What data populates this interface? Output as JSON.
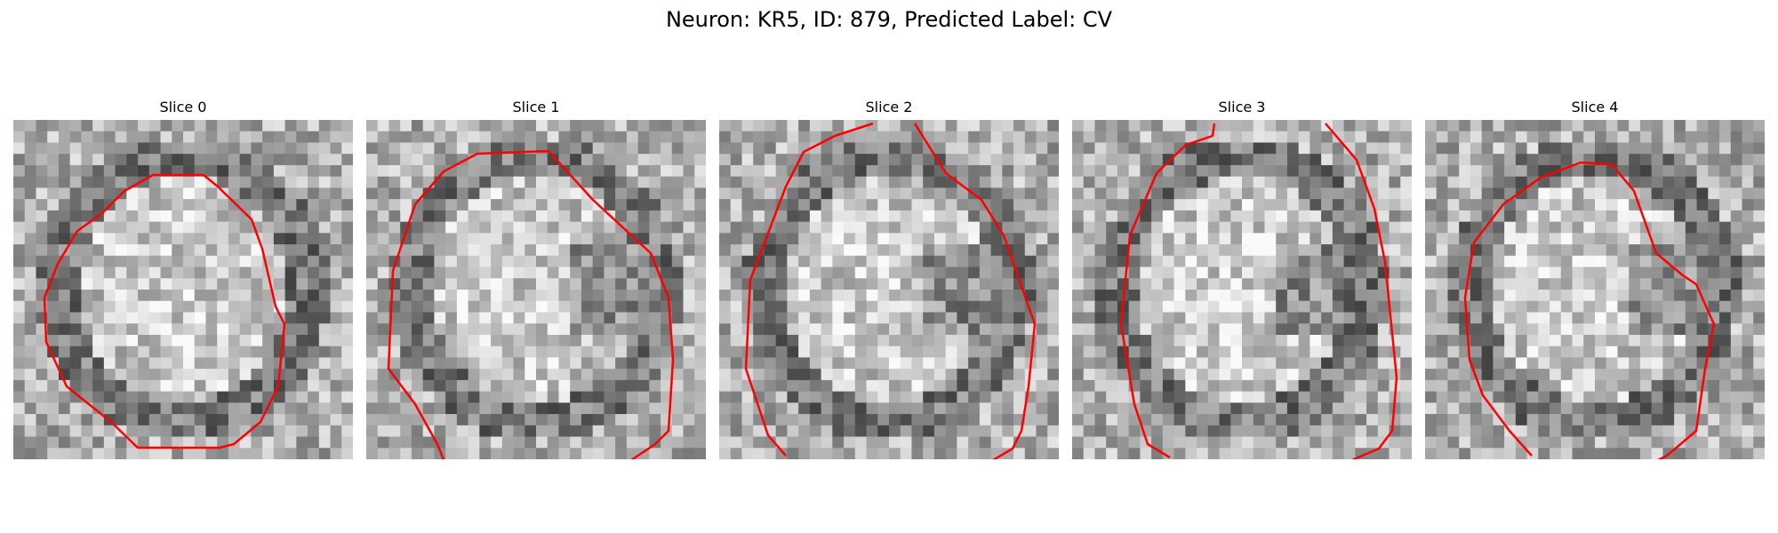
{
  "figure": {
    "title": "Neuron: KR5, ID: 879, Predicted Label: CV",
    "panels": [
      {
        "title": "Slice 0"
      },
      {
        "title": "Slice 1"
      },
      {
        "title": "Slice 2"
      },
      {
        "title": "Slice 3"
      },
      {
        "title": "Slice 4"
      }
    ],
    "image_colormap": "gray",
    "contour_color": "#ff0000"
  }
}
